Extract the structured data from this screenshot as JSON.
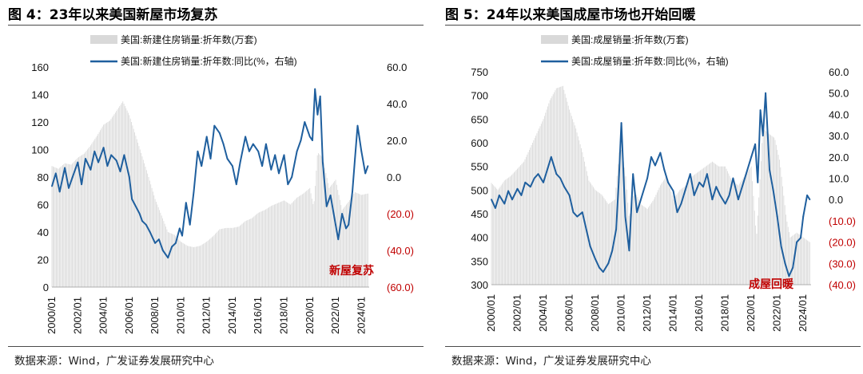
{
  "chart_data": [
    {
      "type": "bar+line",
      "title": "图 4：23年以来美国新屋市场复苏",
      "source": "数据来源：Wind，广发证券发展研究中心",
      "annotation": "新屋复苏",
      "legend": [
        "美国:新建住房销量:折年数(万套)",
        "美国:新建住房销量:折年数:同比(%，右轴)"
      ],
      "colors": {
        "bars": "#d9d9d9",
        "line": "#1f5f9e"
      },
      "ylim_left": [
        0,
        160
      ],
      "yticks_left": [
        "0",
        "20",
        "40",
        "60",
        "80",
        "100",
        "120",
        "140",
        "160"
      ],
      "ylim_right": [
        -60,
        60
      ],
      "yticks_right": [
        "(60.0)",
        "(40.0)",
        "(20.0)",
        "0.0",
        "20.0",
        "40.0",
        "60.0"
      ],
      "xlim": [
        2000.0,
        2024.6
      ],
      "x_ticks": [
        "2000/01",
        "2002/01",
        "2004/01",
        "2006/01",
        "2008/01",
        "2010/01",
        "2012/01",
        "2014/01",
        "2016/01",
        "2018/01",
        "2020/01",
        "2022/01",
        "2024/01"
      ],
      "series": [
        {
          "name": "美国:新建住房销量:折年数(万套)",
          "kind": "bar",
          "axis": "left",
          "x": [
            2000.0,
            2000.5,
            2001.0,
            2001.5,
            2002.0,
            2002.5,
            2003.0,
            2003.5,
            2004.0,
            2004.5,
            2005.0,
            2005.5,
            2006.0,
            2006.5,
            2007.0,
            2007.5,
            2008.0,
            2008.5,
            2009.0,
            2009.5,
            2010.0,
            2010.5,
            2011.0,
            2011.5,
            2012.0,
            2012.5,
            2013.0,
            2013.5,
            2014.0,
            2014.5,
            2015.0,
            2015.5,
            2016.0,
            2016.5,
            2017.0,
            2017.5,
            2018.0,
            2018.5,
            2019.0,
            2019.5,
            2020.0,
            2020.3,
            2020.6,
            2021.0,
            2021.5,
            2022.0,
            2022.5,
            2023.0,
            2023.5,
            2024.0,
            2024.5
          ],
          "values": [
            88,
            86,
            90,
            89,
            94,
            97,
            103,
            110,
            118,
            121,
            128,
            135,
            125,
            110,
            95,
            80,
            64,
            52,
            40,
            38,
            33,
            30,
            29,
            30,
            33,
            37,
            42,
            43,
            43,
            44,
            48,
            50,
            54,
            56,
            59,
            61,
            63,
            60,
            65,
            68,
            72,
            58,
            98,
            94,
            72,
            78,
            56,
            62,
            69,
            67,
            68
          ]
        },
        {
          "name": "美国:新建住房销量:折年数:同比(%，右轴)",
          "kind": "line",
          "axis": "right",
          "x": [
            2000.0,
            2000.3,
            2000.6,
            2001.0,
            2001.3,
            2001.6,
            2002.0,
            2002.3,
            2002.6,
            2003.0,
            2003.3,
            2003.6,
            2004.0,
            2004.3,
            2004.6,
            2005.0,
            2005.3,
            2005.6,
            2006.0,
            2006.2,
            2006.5,
            2006.8,
            2007.0,
            2007.3,
            2007.6,
            2008.0,
            2008.3,
            2008.6,
            2009.0,
            2009.3,
            2009.6,
            2009.9,
            2010.1,
            2010.4,
            2010.7,
            2011.0,
            2011.3,
            2011.6,
            2012.0,
            2012.3,
            2012.6,
            2013.0,
            2013.3,
            2013.6,
            2014.0,
            2014.3,
            2014.6,
            2015.0,
            2015.3,
            2015.6,
            2016.0,
            2016.3,
            2016.6,
            2017.0,
            2017.3,
            2017.6,
            2018.0,
            2018.3,
            2018.6,
            2019.0,
            2019.3,
            2019.6,
            2020.0,
            2020.2,
            2020.4,
            2020.6,
            2020.8,
            2021.0,
            2021.3,
            2021.6,
            2022.0,
            2022.2,
            2022.5,
            2022.8,
            2023.0,
            2023.3,
            2023.5,
            2023.7,
            2024.0,
            2024.3,
            2024.5
          ],
          "values": [
            -5,
            2,
            -8,
            5,
            -6,
            0,
            8,
            -4,
            10,
            4,
            14,
            8,
            16,
            6,
            12,
            9,
            3,
            12,
            0,
            -12,
            -16,
            -20,
            -24,
            -26,
            -30,
            -36,
            -34,
            -40,
            -44,
            -38,
            -36,
            -28,
            -32,
            -14,
            -26,
            -8,
            14,
            6,
            22,
            10,
            28,
            24,
            18,
            10,
            6,
            -4,
            8,
            22,
            14,
            18,
            14,
            6,
            18,
            4,
            12,
            2,
            12,
            -4,
            0,
            14,
            20,
            30,
            22,
            20,
            48,
            34,
            44,
            8,
            -16,
            -10,
            -26,
            -34,
            -20,
            -28,
            -26,
            -8,
            10,
            28,
            14,
            2,
            6
          ]
        }
      ]
    },
    {
      "type": "bar+line",
      "title": "图 5：24年以来美国成屋市场也开始回暖",
      "source": "数据来源：Wind，广发证券发展研究中心",
      "annotation": "成屋回暖",
      "legend": [
        "美国:成屋销量:折年数(万套)",
        "美国:成屋销量:折年数:同比(%，右轴)"
      ],
      "colors": {
        "bars": "#d9d9d9",
        "line": "#1f5f9e"
      },
      "ylim_left": [
        300,
        750
      ],
      "yticks_left": [
        "300",
        "350",
        "400",
        "450",
        "500",
        "550",
        "600",
        "650",
        "700",
        "750"
      ],
      "ylim_right": [
        -40,
        60
      ],
      "yticks_right": [
        "(40.0)",
        "(30.0)",
        "(20.0)",
        "(10.0)",
        "0.0",
        "10.0",
        "20.0",
        "30.0",
        "40.0",
        "50.0",
        "60.0"
      ],
      "xlim": [
        2000.0,
        2024.6
      ],
      "x_ticks": [
        "2000/01",
        "2002/01",
        "2004/01",
        "2006/01",
        "2008/01",
        "2010/01",
        "2012/01",
        "2014/01",
        "2016/01",
        "2018/01",
        "2020/01",
        "2022/01",
        "2024/01"
      ],
      "series": [
        {
          "name": "美国:成屋销量:折年数(万套)",
          "kind": "bar",
          "axis": "left",
          "x": [
            2000.0,
            2000.5,
            2001.0,
            2001.5,
            2002.0,
            2002.5,
            2003.0,
            2003.5,
            2004.0,
            2004.5,
            2005.0,
            2005.5,
            2006.0,
            2006.5,
            2007.0,
            2007.5,
            2008.0,
            2008.5,
            2009.0,
            2009.5,
            2009.9,
            2010.3,
            2010.6,
            2011.0,
            2011.5,
            2012.0,
            2012.5,
            2013.0,
            2013.5,
            2014.0,
            2014.5,
            2015.0,
            2015.5,
            2016.0,
            2016.5,
            2017.0,
            2017.5,
            2018.0,
            2018.5,
            2019.0,
            2019.5,
            2020.0,
            2020.4,
            2020.9,
            2021.3,
            2021.8,
            2022.2,
            2022.7,
            2023.0,
            2023.5,
            2024.0,
            2024.5
          ],
          "values": [
            515,
            500,
            520,
            530,
            545,
            560,
            590,
            620,
            650,
            690,
            715,
            720,
            670,
            630,
            580,
            520,
            500,
            490,
            470,
            480,
            600,
            540,
            440,
            500,
            470,
            460,
            480,
            510,
            530,
            480,
            500,
            510,
            530,
            540,
            550,
            560,
            550,
            550,
            520,
            510,
            530,
            550,
            400,
            630,
            620,
            610,
            560,
            440,
            400,
            410,
            400,
            390
          ]
        },
        {
          "name": "美国:成屋销量:折年数:同比(%，右轴)",
          "kind": "line",
          "axis": "right",
          "x": [
            2000.0,
            2000.3,
            2000.6,
            2001.0,
            2001.3,
            2001.6,
            2002.0,
            2002.3,
            2002.6,
            2003.0,
            2003.3,
            2003.6,
            2004.0,
            2004.3,
            2004.6,
            2005.0,
            2005.3,
            2005.6,
            2006.0,
            2006.3,
            2006.6,
            2007.0,
            2007.3,
            2007.6,
            2008.0,
            2008.3,
            2008.6,
            2009.0,
            2009.3,
            2009.6,
            2009.8,
            2010.0,
            2010.3,
            2010.6,
            2010.9,
            2011.2,
            2011.5,
            2012.0,
            2012.3,
            2012.6,
            2013.0,
            2013.3,
            2013.6,
            2014.0,
            2014.3,
            2014.6,
            2015.0,
            2015.3,
            2015.6,
            2016.0,
            2016.3,
            2016.6,
            2017.0,
            2017.3,
            2017.6,
            2018.0,
            2018.3,
            2018.6,
            2019.0,
            2019.3,
            2019.6,
            2020.0,
            2020.3,
            2020.5,
            2020.7,
            2020.9,
            2021.1,
            2021.4,
            2021.7,
            2022.0,
            2022.3,
            2022.6,
            2022.9,
            2023.2,
            2023.5,
            2023.8,
            2024.0,
            2024.3,
            2024.5
          ],
          "values": [
            0,
            -4,
            2,
            -2,
            4,
            0,
            5,
            2,
            8,
            6,
            10,
            12,
            8,
            14,
            20,
            12,
            10,
            6,
            2,
            -6,
            -8,
            -6,
            -14,
            -22,
            -28,
            -32,
            -34,
            -30,
            -24,
            -14,
            8,
            36,
            -8,
            -24,
            12,
            -6,
            0,
            10,
            20,
            16,
            22,
            14,
            8,
            4,
            -6,
            -2,
            6,
            12,
            2,
            8,
            6,
            12,
            0,
            6,
            2,
            -2,
            2,
            10,
            0,
            6,
            12,
            20,
            26,
            8,
            42,
            30,
            50,
            14,
            4,
            -8,
            -22,
            -30,
            -36,
            -32,
            -20,
            -18,
            -8,
            2,
            0
          ]
        }
      ]
    }
  ]
}
